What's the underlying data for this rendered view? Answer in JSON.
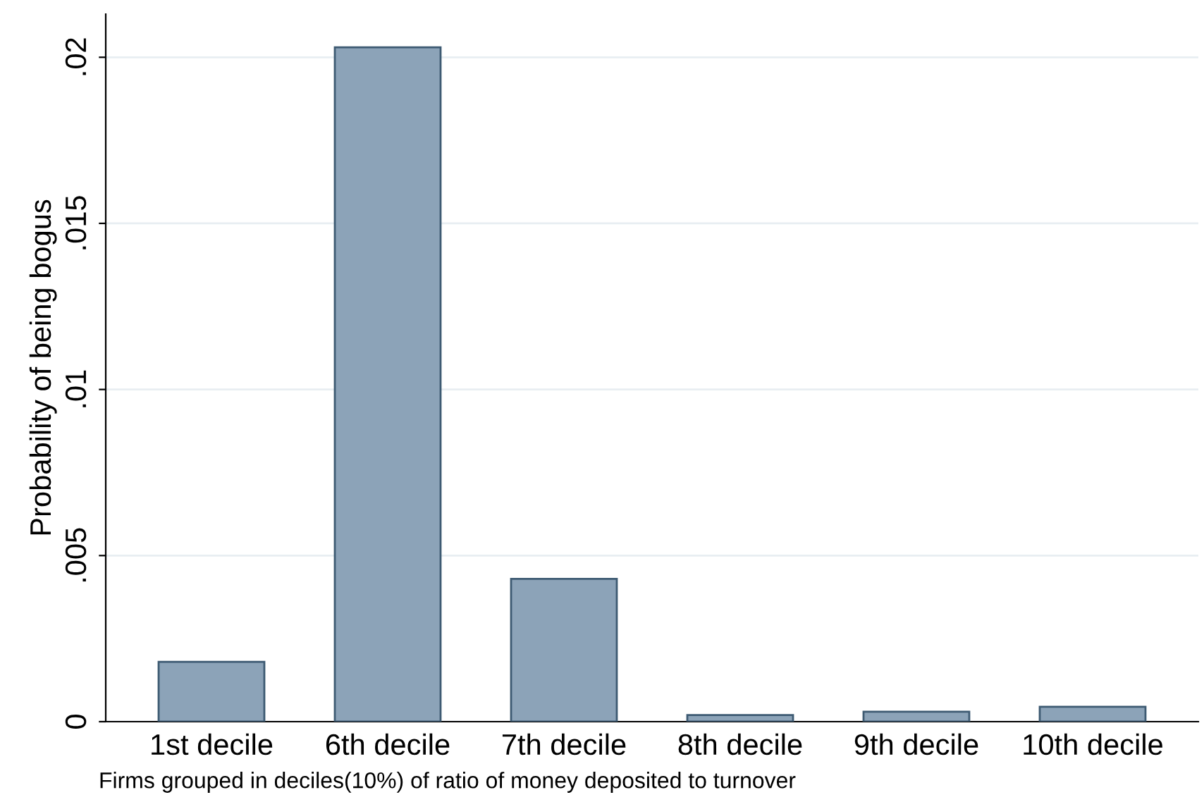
{
  "chart_data": {
    "type": "bar",
    "ylabel": "Probability of being bogus",
    "categories": [
      "1st decile",
      "6th decile",
      "7th decile",
      "8th decile",
      "9th decile",
      "10th decile"
    ],
    "values": [
      0.0018,
      0.0203,
      0.0043,
      0.0002,
      0.0003,
      0.00045
    ],
    "color": "#8ca3b8",
    "ylim": [
      0,
      0.0213
    ],
    "yticks": [
      {
        "value": 0,
        "label": "0"
      },
      {
        "value": 0.005,
        "label": ".005"
      },
      {
        "value": 0.01,
        "label": ".01"
      },
      {
        "value": 0.015,
        "label": ".015"
      },
      {
        "value": 0.02,
        "label": ".02"
      }
    ],
    "grid": "y",
    "annotations": [
      "Firms grouped in deciles(10%) of ratio of money deposited to turnover"
    ]
  }
}
